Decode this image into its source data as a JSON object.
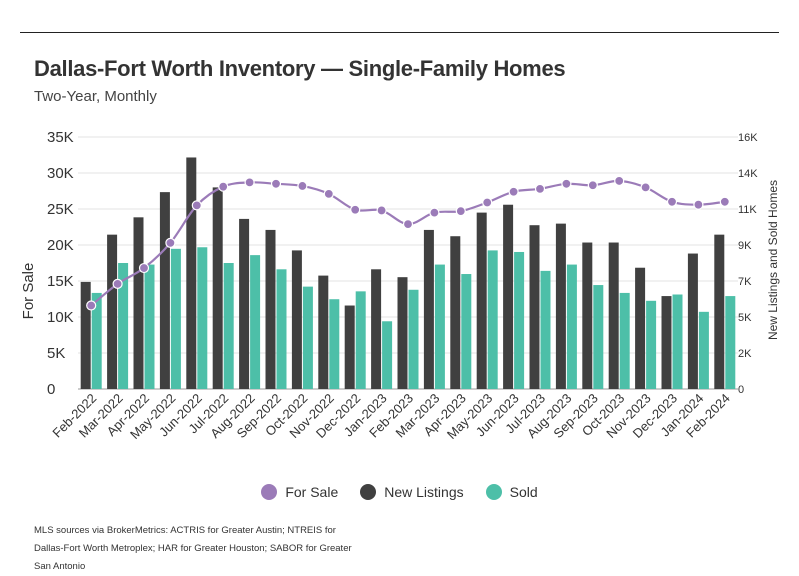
{
  "header": {
    "title": "Dallas-Fort Worth Inventory — Single-Family Homes",
    "subtitle": "Two-Year, Monthly"
  },
  "footer": {
    "source": "MLS sources via BrokerMetrics: ACTRIS for Greater Austin; NTREIS for Dallas-Fort Worth Metroplex; HAR for Greater Houston; SABOR for Greater San Antonio"
  },
  "colors": {
    "for_sale": "#9b7bb8",
    "new_listings": "#404040",
    "sold": "#4dbfa8",
    "grid": "#e3e3e3"
  },
  "chart_data": {
    "type": "bar",
    "title": "Dallas-Fort Worth Inventory — Single-Family Homes",
    "subtitle": "Two-Year, Monthly",
    "ylabel": "For Sale",
    "y2label": "New Listings and Sold Homes",
    "ylim": [
      0,
      35000
    ],
    "y2lim": [
      0,
      16000
    ],
    "yticks": [
      "0",
      "5K",
      "10K",
      "15K",
      "20K",
      "25K",
      "30K",
      "35K"
    ],
    "y2ticks": [
      "0",
      "2K",
      "5K",
      "7K",
      "9K",
      "11K",
      "14K",
      "16K"
    ],
    "grid": true,
    "legend_position": "bottom",
    "categories": [
      "Feb-2022",
      "Mar-2022",
      "Apr-2022",
      "May-2022",
      "Jun-2022",
      "Jul-2022",
      "Aug-2022",
      "Sep-2022",
      "Oct-2022",
      "Nov-2022",
      "Dec-2022",
      "Jan-2023",
      "Feb-2023",
      "Mar-2023",
      "Apr-2023",
      "May-2023",
      "Jun-2023",
      "Jul-2023",
      "Aug-2023",
      "Sep-2023",
      "Oct-2023",
      "Nov-2023",
      "Dec-2023",
      "Jan-2024",
      "Feb-2024"
    ],
    "series": [
      {
        "name": "For Sale",
        "type": "line",
        "axis": "left",
        "values": [
          11600,
          14600,
          16800,
          20300,
          25500,
          28100,
          28700,
          28500,
          28200,
          27100,
          24900,
          24800,
          22900,
          24500,
          24700,
          25900,
          27400,
          27800,
          28500,
          28300,
          28900,
          28000,
          26000,
          25600,
          26000
        ]
      },
      {
        "name": "New Listings",
        "type": "bar",
        "axis": "right",
        "values": [
          6800,
          9800,
          10900,
          12500,
          14700,
          12800,
          10800,
          10100,
          8800,
          7200,
          5300,
          7600,
          7100,
          10100,
          9700,
          11200,
          11700,
          10400,
          10500,
          9300,
          9300,
          7700,
          5900,
          8600,
          9800
        ]
      },
      {
        "name": "Sold",
        "type": "bar",
        "axis": "right",
        "values": [
          6100,
          8000,
          7900,
          8900,
          9000,
          8000,
          8500,
          7600,
          6500,
          5700,
          6200,
          4300,
          6300,
          7900,
          7300,
          8800,
          8700,
          7500,
          7900,
          6600,
          6100,
          5600,
          6000,
          4900,
          5900
        ]
      }
    ]
  }
}
